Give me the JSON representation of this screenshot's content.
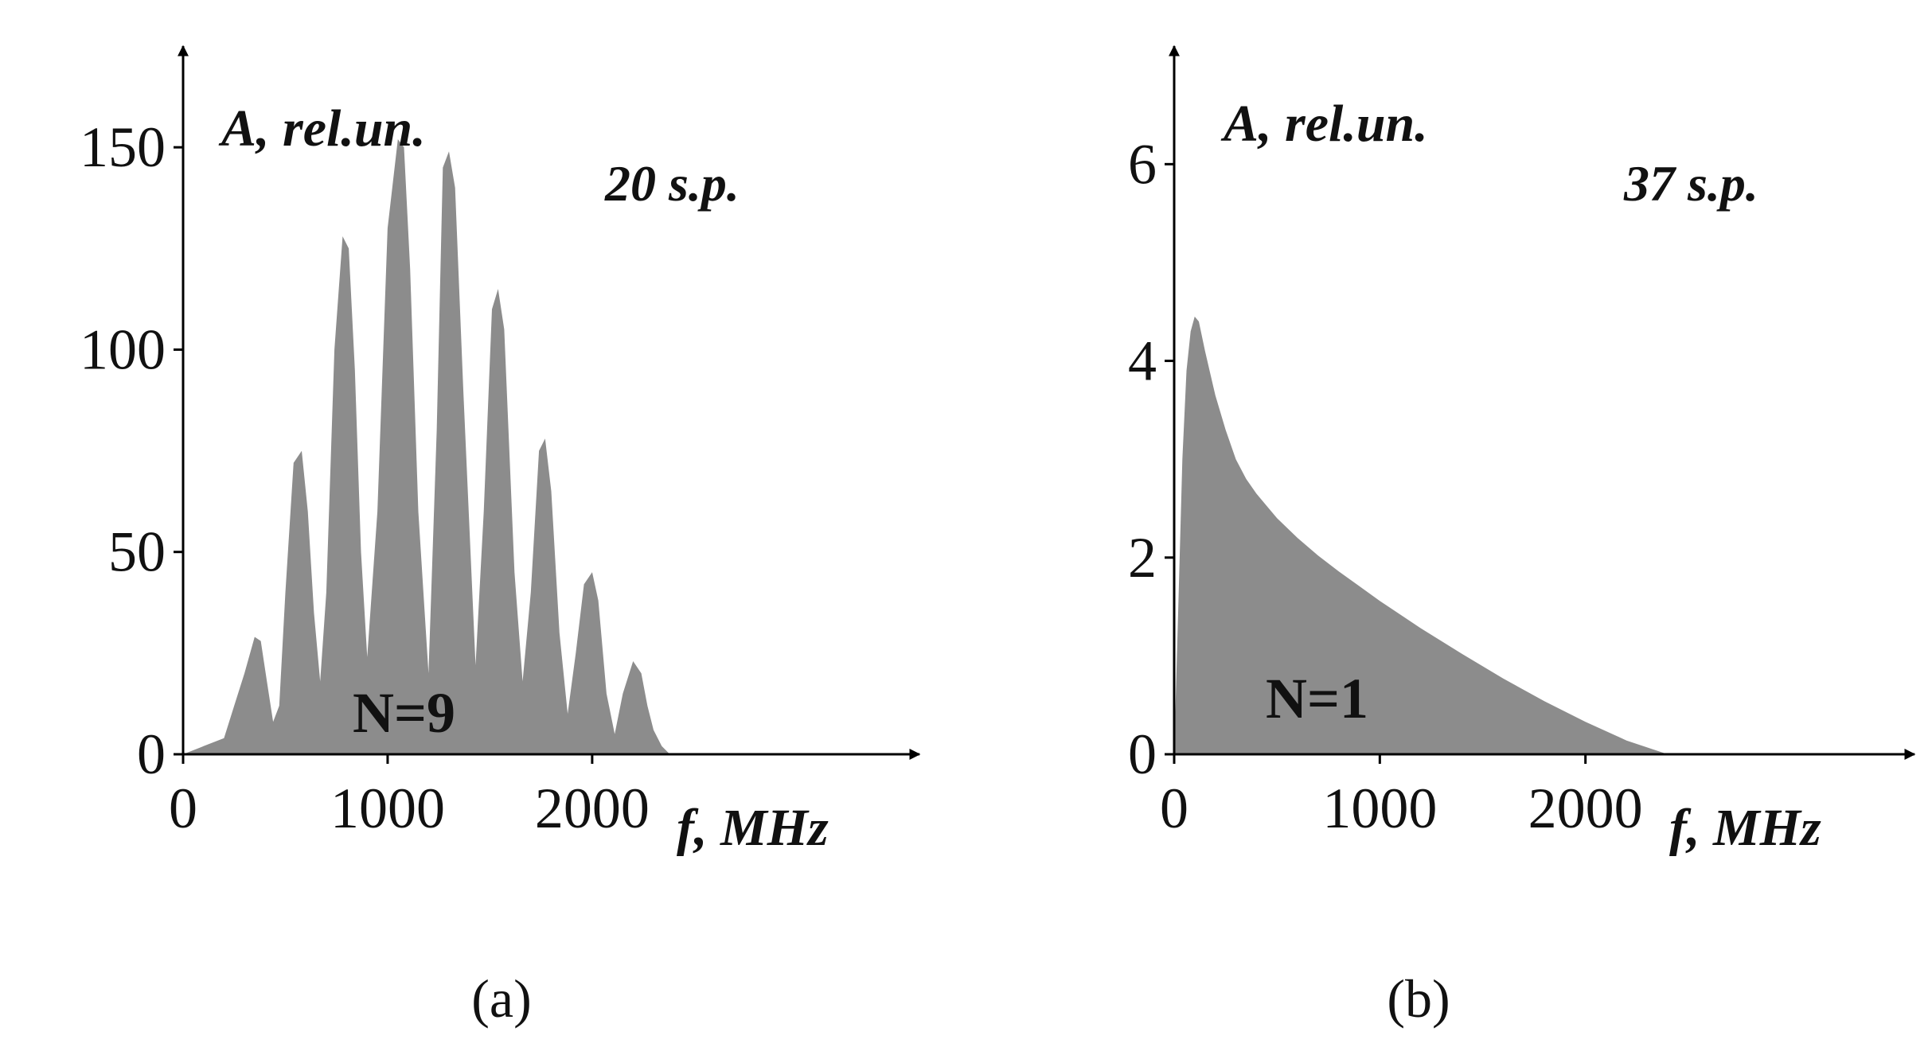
{
  "chart_data": [
    {
      "type": "area",
      "panel_caption": "(a)",
      "ylabel": "A, rel.un.",
      "xlabel": "f, MHz",
      "annotation": "20 s.p.",
      "n_label": "N=9",
      "xlim": [
        0,
        3600
      ],
      "ylim": [
        0,
        175
      ],
      "xticks": [
        0,
        1000,
        2000
      ],
      "yticks": [
        0,
        50,
        100,
        150
      ],
      "x": [
        0,
        100,
        200,
        250,
        300,
        350,
        380,
        410,
        440,
        470,
        500,
        540,
        580,
        610,
        640,
        670,
        700,
        740,
        780,
        810,
        840,
        870,
        900,
        950,
        1000,
        1050,
        1080,
        1110,
        1150,
        1200,
        1240,
        1270,
        1300,
        1330,
        1370,
        1430,
        1470,
        1510,
        1540,
        1570,
        1620,
        1660,
        1700,
        1740,
        1770,
        1800,
        1840,
        1880,
        1920,
        1960,
        2000,
        2030,
        2070,
        2110,
        2150,
        2200,
        2240,
        2270,
        2300,
        2340,
        2380
      ],
      "values": [
        0,
        2,
        4,
        12,
        20,
        29,
        28,
        18,
        8,
        12,
        40,
        72,
        75,
        60,
        35,
        18,
        40,
        100,
        128,
        125,
        95,
        50,
        24,
        60,
        130,
        152,
        150,
        120,
        60,
        20,
        80,
        145,
        149,
        140,
        90,
        22,
        60,
        110,
        115,
        105,
        45,
        18,
        40,
        75,
        78,
        65,
        30,
        10,
        25,
        42,
        45,
        38,
        15,
        5,
        15,
        23,
        20,
        12,
        6,
        2,
        0
      ],
      "series_color": "#8c8c8c"
    },
    {
      "type": "area",
      "panel_caption": "(b)",
      "ylabel": "A, rel.un.",
      "xlabel": "f, MHz",
      "annotation": "37 s.p.",
      "n_label": "N=1",
      "xlim": [
        0,
        3600
      ],
      "ylim": [
        0,
        7.2
      ],
      "xticks": [
        0,
        1000,
        2000
      ],
      "yticks": [
        0,
        2,
        4,
        6
      ],
      "x": [
        0,
        20,
        40,
        60,
        80,
        100,
        120,
        150,
        200,
        250,
        300,
        350,
        400,
        500,
        600,
        700,
        800,
        900,
        1000,
        1200,
        1400,
        1600,
        1800,
        2000,
        2200,
        2400
      ],
      "values": [
        0,
        1.5,
        3.0,
        3.9,
        4.3,
        4.45,
        4.4,
        4.1,
        3.65,
        3.3,
        3.0,
        2.8,
        2.65,
        2.4,
        2.2,
        2.02,
        1.86,
        1.71,
        1.56,
        1.28,
        1.02,
        0.77,
        0.54,
        0.33,
        0.14,
        0
      ],
      "series_color": "#8c8c8c"
    }
  ]
}
